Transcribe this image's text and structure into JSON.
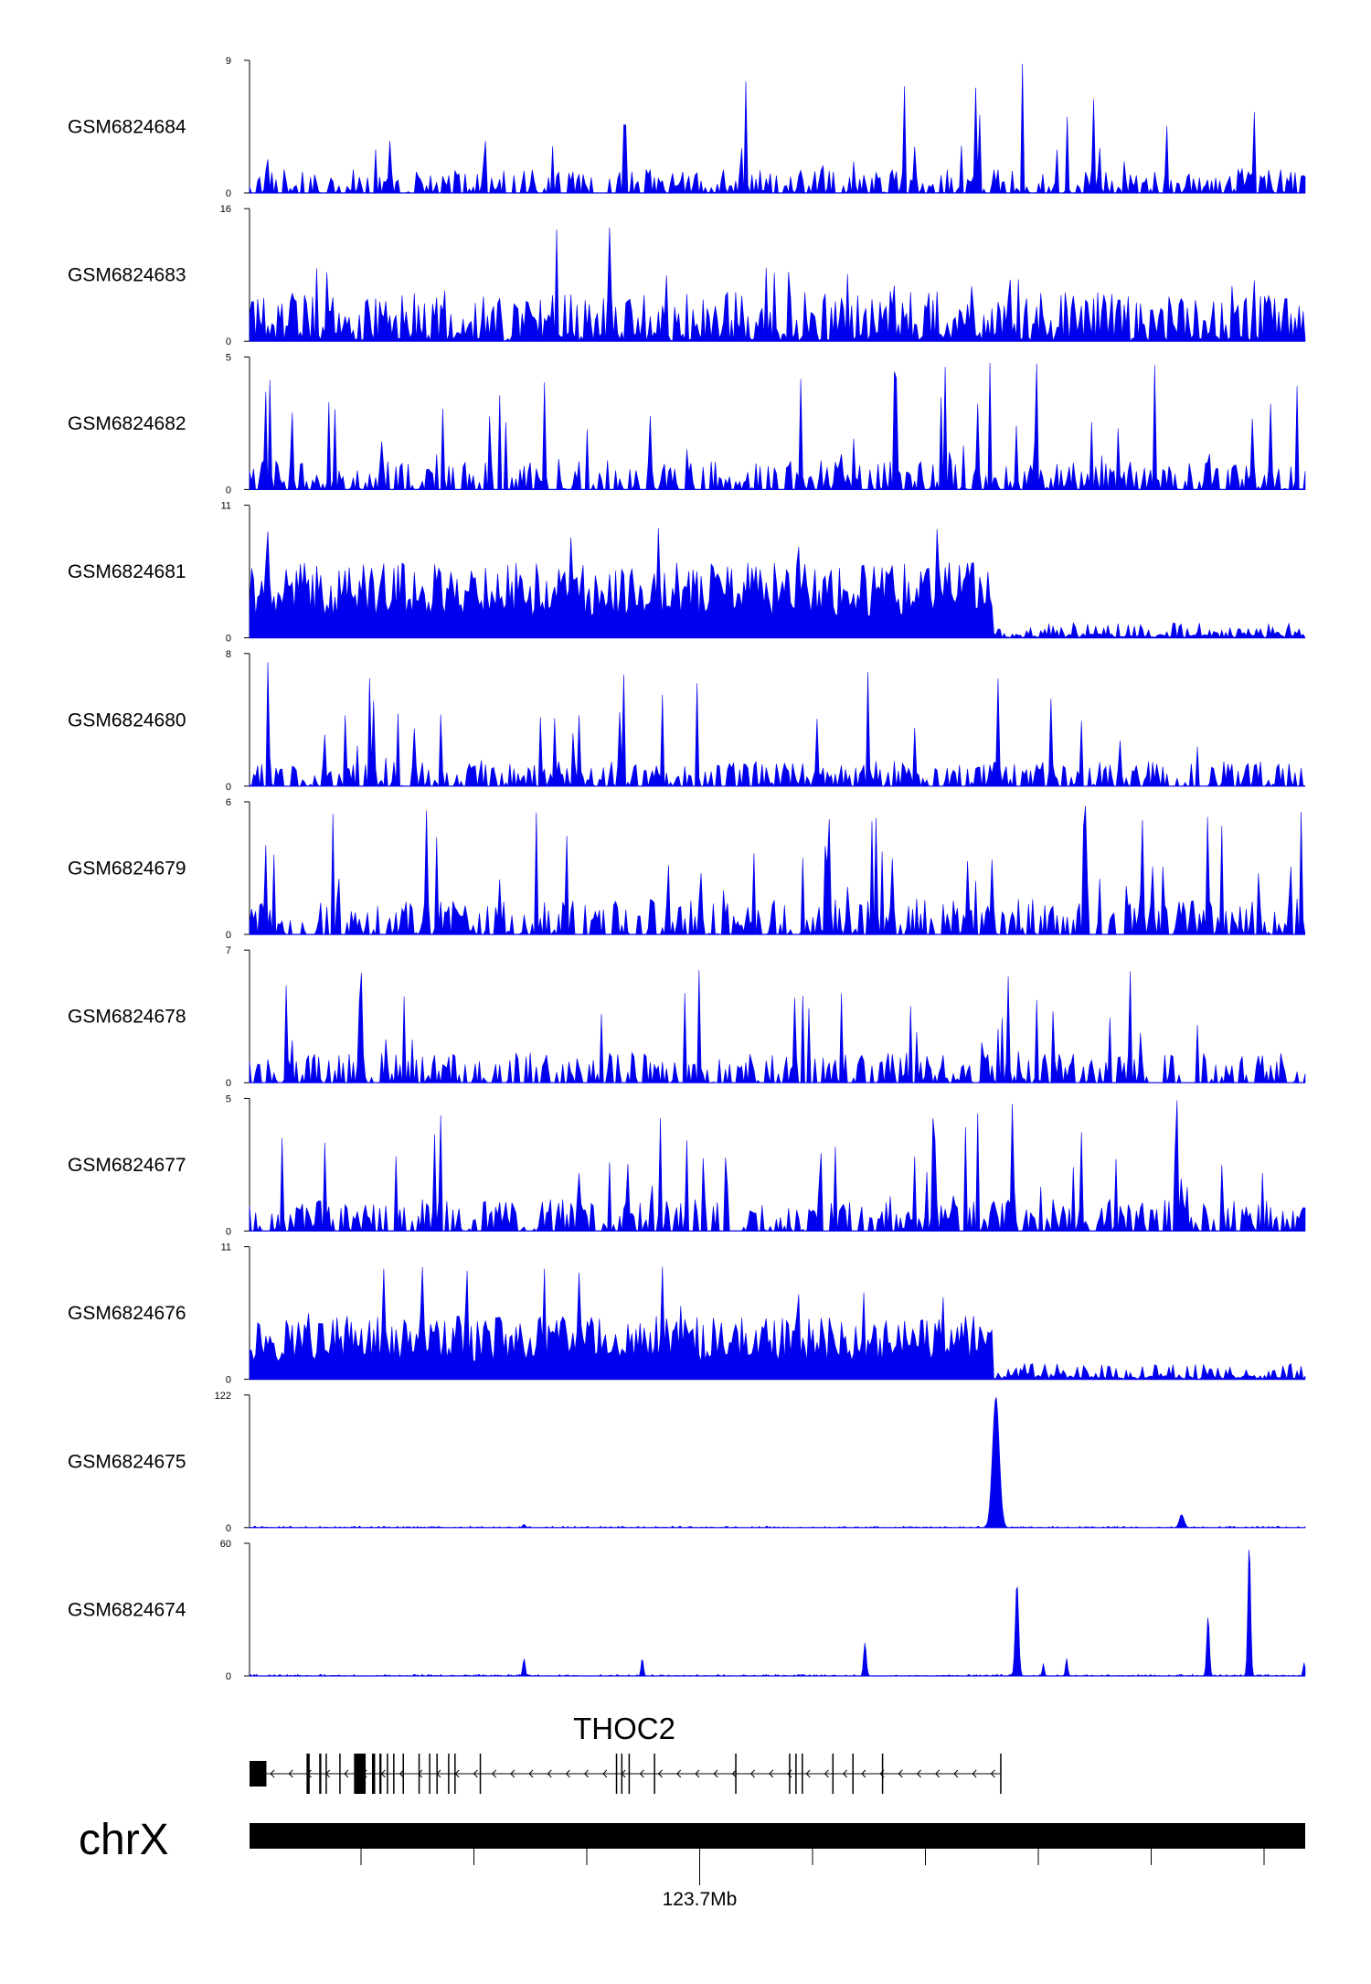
{
  "chart_data": {
    "type": "area",
    "track_color": "#0000EE",
    "x_axis": {
      "label": "123.7Mb",
      "minor_tick_count": 9
    },
    "tracks": [
      {
        "name": "GSM6824684",
        "ylim": [
          0,
          9
        ],
        "ymax_label": "9",
        "ymin_label": "0",
        "profile": "sparse",
        "peak_mean": 1.6,
        "seed": 11
      },
      {
        "name": "GSM6824683",
        "ylim": [
          0,
          16
        ],
        "ymax_label": "16",
        "ymin_label": "0",
        "profile": "spiky",
        "peak_mean": 3.8,
        "seed": 23
      },
      {
        "name": "GSM6824682",
        "ylim": [
          0,
          5
        ],
        "ymax_label": "5",
        "ymin_label": "0",
        "profile": "sparse",
        "peak_mean": 1.1,
        "seed": 37
      },
      {
        "name": "GSM6824681",
        "ylim": [
          0,
          11
        ],
        "ymax_label": "11",
        "ymin_label": "0",
        "profile": "dense_left",
        "peak_mean": 5.0,
        "seed": 41
      },
      {
        "name": "GSM6824680",
        "ylim": [
          0,
          8
        ],
        "ymax_label": "8",
        "ymin_label": "0",
        "profile": "sparse",
        "peak_mean": 1.5,
        "seed": 53
      },
      {
        "name": "GSM6824679",
        "ylim": [
          0,
          6
        ],
        "ymax_label": "6",
        "ymin_label": "0",
        "profile": "sparse",
        "peak_mean": 1.6,
        "seed": 67
      },
      {
        "name": "GSM6824678",
        "ylim": [
          0,
          7
        ],
        "ymax_label": "7",
        "ymin_label": "0",
        "profile": "sparse",
        "peak_mean": 1.6,
        "seed": 71
      },
      {
        "name": "GSM6824677",
        "ylim": [
          0,
          5
        ],
        "ymax_label": "5",
        "ymin_label": "0",
        "profile": "sparse",
        "peak_mean": 1.2,
        "seed": 83
      },
      {
        "name": "GSM6824676",
        "ylim": [
          0,
          11
        ],
        "ymax_label": "11",
        "ymin_label": "0",
        "profile": "dense_left",
        "peak_mean": 4.2,
        "seed": 97
      },
      {
        "name": "GSM6824675",
        "ylim": [
          0,
          122
        ],
        "ymax_label": "122",
        "ymin_label": "0",
        "profile": "peaks",
        "seed": 101,
        "peaks": [
          {
            "pos": 0.707,
            "height": 120,
            "width": 0.0045
          },
          {
            "pos": 0.883,
            "height": 12,
            "width": 0.003
          },
          {
            "pos": 0.26,
            "height": 3,
            "width": 0.002
          }
        ]
      },
      {
        "name": "GSM6824674",
        "ylim": [
          0,
          60
        ],
        "ymax_label": "60",
        "ymin_label": "0",
        "profile": "peaks",
        "seed": 113,
        "peaks": [
          {
            "pos": 0.947,
            "height": 60,
            "width": 0.0018
          },
          {
            "pos": 0.727,
            "height": 42,
            "width": 0.0022
          },
          {
            "pos": 0.908,
            "height": 27,
            "width": 0.0018
          },
          {
            "pos": 0.583,
            "height": 15,
            "width": 0.0018
          },
          {
            "pos": 0.26,
            "height": 8,
            "width": 0.0015
          },
          {
            "pos": 0.372,
            "height": 8,
            "width": 0.0015
          },
          {
            "pos": 0.774,
            "height": 8,
            "width": 0.0014
          },
          {
            "pos": 0.752,
            "height": 5,
            "width": 0.0014
          },
          {
            "pos": 0.999,
            "height": 6,
            "width": 0.0014
          }
        ]
      }
    ],
    "gene": {
      "name": "THOC2",
      "strand": "-",
      "start": 0.0,
      "end": 0.712,
      "exons": [
        {
          "s": 0.0,
          "e": 0.016
        },
        {
          "s": 0.054,
          "e": 0.057
        },
        {
          "s": 0.066,
          "e": 0.068
        },
        {
          "s": 0.072,
          "e": 0.073
        },
        {
          "s": 0.085,
          "e": 0.086
        },
        {
          "s": 0.099,
          "e": 0.11
        },
        {
          "s": 0.116,
          "e": 0.119
        },
        {
          "s": 0.123,
          "e": 0.125
        },
        {
          "s": 0.13,
          "e": 0.131
        },
        {
          "s": 0.136,
          "e": 0.137
        },
        {
          "s": 0.145,
          "e": 0.146
        },
        {
          "s": 0.16,
          "e": 0.161
        },
        {
          "s": 0.17,
          "e": 0.171
        },
        {
          "s": 0.177,
          "e": 0.178
        },
        {
          "s": 0.188,
          "e": 0.189
        },
        {
          "s": 0.194,
          "e": 0.195
        },
        {
          "s": 0.218,
          "e": 0.219
        },
        {
          "s": 0.347,
          "e": 0.348
        },
        {
          "s": 0.352,
          "e": 0.353
        },
        {
          "s": 0.359,
          "e": 0.36
        },
        {
          "s": 0.383,
          "e": 0.384
        },
        {
          "s": 0.46,
          "e": 0.461
        },
        {
          "s": 0.511,
          "e": 0.512
        },
        {
          "s": 0.517,
          "e": 0.518
        },
        {
          "s": 0.523,
          "e": 0.524
        },
        {
          "s": 0.552,
          "e": 0.553
        },
        {
          "s": 0.571,
          "e": 0.572
        },
        {
          "s": 0.599,
          "e": 0.6
        },
        {
          "s": 0.711,
          "e": 0.712
        }
      ]
    },
    "chromosome": "chrX"
  }
}
